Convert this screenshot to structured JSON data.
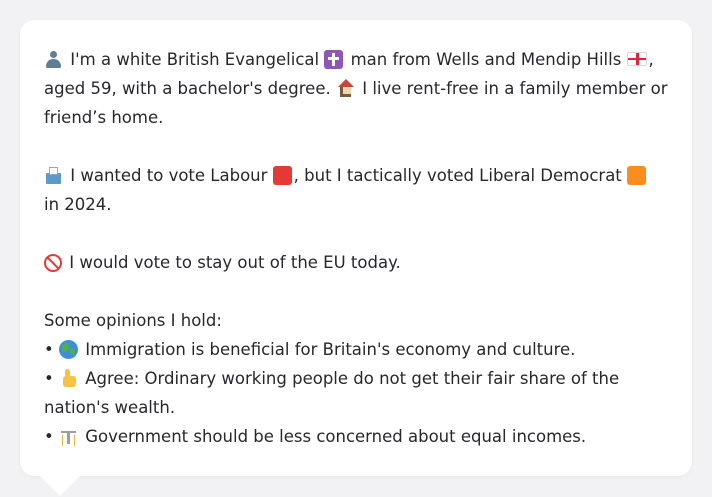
{
  "message": {
    "intro": {
      "part1": "I'm a white British Evangelical",
      "part2": "man from Wells and Mendip Hills",
      "part3": ", aged 59, with a bachelor's degree.",
      "part4": "I live rent-free in a family member or friend’s home."
    },
    "vote": {
      "part1": "I wanted to vote Labour",
      "part2": ", but I tactically voted Liberal Democrat",
      "part3": "in 2024."
    },
    "eu": {
      "text": "I would vote to stay out of the EU today."
    },
    "opinions": {
      "heading": "Some opinions I hold:",
      "bullet": "•",
      "items": [
        {
          "icon": "globe-icon",
          "text": "Immigration is beneficial for Britain's economy and culture."
        },
        {
          "icon": "thumbs-up-icon",
          "text": "Agree: Ordinary working people do not get their fair share of the nation's wealth."
        },
        {
          "icon": "balance-icon",
          "text": "Government should be less concerned about equal incomes."
        }
      ]
    }
  },
  "colors": {
    "labour": "#e53935",
    "liberal_democrat": "#fb8c1e",
    "text": "#26282d",
    "background": "#f2f2f4",
    "bubble": "#ffffff"
  }
}
